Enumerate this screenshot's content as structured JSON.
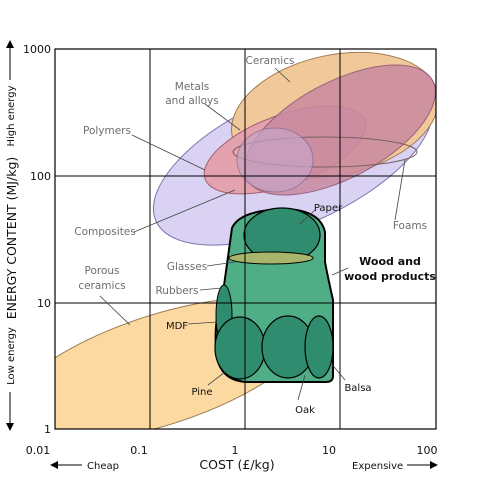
{
  "x_axis": {
    "title": "COST (£/kg)",
    "ticks": [
      "0.01",
      "0.1",
      "1",
      "10",
      "100"
    ],
    "left_note": "Cheap",
    "right_note": "Expensive"
  },
  "y_axis": {
    "title": "ENERGY CONTENT (MJ/kg)",
    "ticks": [
      "1000",
      "100",
      "10",
      "1"
    ],
    "top_note": "High energy",
    "bottom_note": "Low energy"
  },
  "regions": {
    "ceramics": "Ceramics",
    "metals": [
      "Metals",
      "and alloys"
    ],
    "polymers": "Polymers",
    "composites": "Composites",
    "foams": "Foams",
    "porous_ceramics": [
      "Porous",
      "ceramics"
    ],
    "glasses": "Glasses",
    "rubbers": "Rubbers",
    "wood": [
      "Wood and",
      "wood products"
    ],
    "paper": "Paper",
    "mdf": "MDF",
    "pine": "Pine",
    "oak": "Oak",
    "balsa": "Balsa"
  },
  "colors": {
    "composites_fill": "#d9d2f2",
    "ceramics_fill": "#f0c89a",
    "metals_fill": "#d88aa0",
    "porous_fill": "#fbd9a0",
    "wood_fill": "#4fae85",
    "wood_dark": "#2f8c6e",
    "grid": "#000000"
  }
}
